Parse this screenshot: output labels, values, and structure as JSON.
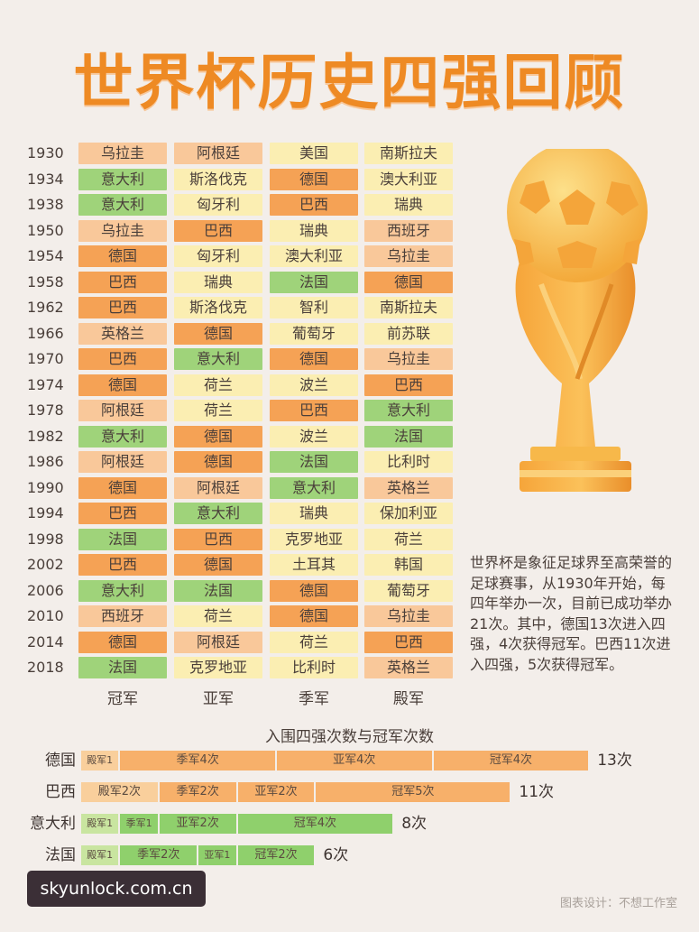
{
  "title": "世界杯历史四强回顾",
  "colors": {
    "title": "#ee8a24",
    "orange": "#f5a255",
    "light_orange": "#f9c89a",
    "green": "#9fd37a",
    "light_green": "#cfe6a9",
    "yellow": "#fbeeb2",
    "bar_green": "#8fd06c",
    "bar_light_green": "#c9e5a0",
    "bar_orange": "#f7b06a",
    "bar_light_orange": "#f9cf9c"
  },
  "legend": {
    "champion": "冠军",
    "runner_up": "亚军",
    "third": "季军",
    "fourth": "殿军"
  },
  "chart_data": [
    {
      "type": "table",
      "columns": [
        "冠军",
        "亚军",
        "季军",
        "殿军"
      ],
      "rows": [
        {
          "year": "1930",
          "teams": [
            "乌拉圭",
            "阿根廷",
            "美国",
            "南斯拉夫"
          ]
        },
        {
          "year": "1934",
          "teams": [
            "意大利",
            "斯洛伐克",
            "德国",
            "澳大利亚"
          ]
        },
        {
          "year": "1938",
          "teams": [
            "意大利",
            "匈牙利",
            "巴西",
            "瑞典"
          ]
        },
        {
          "year": "1950",
          "teams": [
            "乌拉圭",
            "巴西",
            "瑞典",
            "西班牙"
          ]
        },
        {
          "year": "1954",
          "teams": [
            "德国",
            "匈牙利",
            "澳大利亚",
            "乌拉圭"
          ]
        },
        {
          "year": "1958",
          "teams": [
            "巴西",
            "瑞典",
            "法国",
            "德国"
          ]
        },
        {
          "year": "1962",
          "teams": [
            "巴西",
            "斯洛伐克",
            "智利",
            "南斯拉夫"
          ]
        },
        {
          "year": "1966",
          "teams": [
            "英格兰",
            "德国",
            "葡萄牙",
            "前苏联"
          ]
        },
        {
          "year": "1970",
          "teams": [
            "巴西",
            "意大利",
            "德国",
            "乌拉圭"
          ]
        },
        {
          "year": "1974",
          "teams": [
            "德国",
            "荷兰",
            "波兰",
            "巴西"
          ]
        },
        {
          "year": "1978",
          "teams": [
            "阿根廷",
            "荷兰",
            "巴西",
            "意大利"
          ]
        },
        {
          "year": "1982",
          "teams": [
            "意大利",
            "德国",
            "波兰",
            "法国"
          ]
        },
        {
          "year": "1986",
          "teams": [
            "阿根廷",
            "德国",
            "法国",
            "比利时"
          ]
        },
        {
          "year": "1990",
          "teams": [
            "德国",
            "阿根廷",
            "意大利",
            "英格兰"
          ]
        },
        {
          "year": "1994",
          "teams": [
            "巴西",
            "意大利",
            "瑞典",
            "保加利亚"
          ]
        },
        {
          "year": "1998",
          "teams": [
            "法国",
            "巴西",
            "克罗地亚",
            "荷兰"
          ]
        },
        {
          "year": "2002",
          "teams": [
            "巴西",
            "德国",
            "土耳其",
            "韩国"
          ]
        },
        {
          "year": "2006",
          "teams": [
            "意大利",
            "法国",
            "德国",
            "葡萄牙"
          ]
        },
        {
          "year": "2010",
          "teams": [
            "西班牙",
            "荷兰",
            "德国",
            "乌拉圭"
          ]
        },
        {
          "year": "2014",
          "teams": [
            "德国",
            "阿根廷",
            "荷兰",
            "巴西"
          ]
        },
        {
          "year": "2018",
          "teams": [
            "法国",
            "克罗地亚",
            "比利时",
            "英格兰"
          ]
        }
      ]
    },
    {
      "type": "bar",
      "title": "入围四强次数与冠军次数",
      "categories": [
        "德国",
        "巴西",
        "意大利",
        "法国"
      ],
      "series": [
        {
          "name": "殿军",
          "values": [
            1,
            2,
            1,
            1
          ]
        },
        {
          "name": "季军",
          "values": [
            4,
            2,
            1,
            2
          ]
        },
        {
          "name": "亚军",
          "values": [
            4,
            2,
            2,
            1
          ]
        },
        {
          "name": "冠军",
          "values": [
            4,
            5,
            4,
            2
          ]
        }
      ],
      "segment_labels": [
        [
          "殿军1",
          "季军4次",
          "亚军4次",
          "冠军4次"
        ],
        [
          "殿军2次",
          "季军2次",
          "亚军2次",
          "冠军5次"
        ],
        [
          "殿军1",
          "季军1",
          "亚军2次",
          "冠军4次"
        ],
        [
          "殿军1",
          "季军2次",
          "亚军1",
          "冠军2次"
        ]
      ],
      "totals": [
        "13次",
        "11次",
        "8次",
        "6次"
      ],
      "bar_colors": [
        "bar_orange",
        "bar_orange",
        "bar_green",
        "bar_green"
      ]
    }
  ],
  "description": "世界杯是象征足球界至高荣誉的足球赛事，从1930年开始，每四年举办一次，目前已成功举办21次。其中，德国13次进入四强，4次获得冠军。巴西11次进入四强，5次获得冠军。",
  "credit": "图表设计：不想工作室",
  "watermark": "skyunlock.com.cn"
}
